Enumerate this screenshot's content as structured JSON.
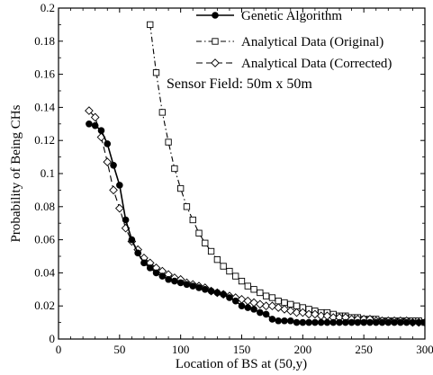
{
  "chart_data": {
    "type": "line",
    "xlabel": "Location of BS at (50,y)",
    "ylabel": "Probability of Being CHs",
    "xlim": [
      0,
      300
    ],
    "ylim": [
      0,
      0.2
    ],
    "x_ticks": [
      0,
      50,
      100,
      150,
      200,
      250,
      300
    ],
    "y_ticks": [
      0,
      0.02,
      0.04,
      0.06,
      0.08,
      0.1,
      0.12,
      0.14,
      0.16,
      0.18,
      0.2
    ],
    "x_tick_labels": [
      "0",
      "50",
      "100",
      "150",
      "200",
      "250",
      "300"
    ],
    "y_tick_labels": [
      "0",
      "0.02",
      "0.04",
      "0.06",
      "0.08",
      "0.1",
      "0.12",
      "0.14",
      "0.16",
      "0.18",
      "0.2"
    ],
    "grid": false,
    "legend_position": "top-right",
    "annotation": "Sensor Field: 50m x 50m",
    "series": [
      {
        "name": "Genetic Algorithm",
        "line_style": "solid",
        "marker": "filled-circle",
        "color": "#000000",
        "x": [
          25,
          30,
          35,
          40,
          45,
          50,
          55,
          60,
          65,
          70,
          75,
          80,
          85,
          90,
          95,
          100,
          105,
          110,
          115,
          120,
          125,
          130,
          135,
          140,
          145,
          150,
          155,
          160,
          165,
          170,
          175,
          180,
          185,
          190,
          195,
          200,
          205,
          210,
          215,
          220,
          225,
          230,
          235,
          240,
          245,
          250,
          255,
          260,
          265,
          270,
          275,
          280,
          285,
          290,
          295,
          300
        ],
        "values": [
          0.13,
          0.129,
          0.126,
          0.118,
          0.105,
          0.093,
          0.072,
          0.06,
          0.052,
          0.046,
          0.043,
          0.04,
          0.038,
          0.036,
          0.035,
          0.034,
          0.033,
          0.032,
          0.031,
          0.03,
          0.029,
          0.028,
          0.027,
          0.025,
          0.023,
          0.02,
          0.019,
          0.018,
          0.016,
          0.015,
          0.012,
          0.011,
          0.011,
          0.011,
          0.01,
          0.01,
          0.01,
          0.01,
          0.01,
          0.01,
          0.01,
          0.01,
          0.01,
          0.01,
          0.01,
          0.01,
          0.01,
          0.01,
          0.01,
          0.01,
          0.01,
          0.01,
          0.01,
          0.01,
          0.01,
          0.01
        ]
      },
      {
        "name": "Analytical Data (Original)",
        "line_style": "dash-dot",
        "marker": "open-square",
        "color": "#000000",
        "x": [
          75,
          80,
          85,
          90,
          95,
          100,
          105,
          110,
          115,
          120,
          125,
          130,
          135,
          140,
          145,
          150,
          155,
          160,
          165,
          170,
          175,
          180,
          185,
          190,
          195,
          200,
          205,
          210,
          215,
          220,
          225,
          230,
          235,
          240,
          245,
          250,
          255,
          260,
          265,
          270,
          275,
          280,
          285,
          290,
          295,
          300
        ],
        "values": [
          0.19,
          0.161,
          0.137,
          0.119,
          0.103,
          0.091,
          0.08,
          0.072,
          0.064,
          0.058,
          0.053,
          0.048,
          0.044,
          0.041,
          0.038,
          0.035,
          0.032,
          0.03,
          0.028,
          0.026,
          0.025,
          0.023,
          0.022,
          0.021,
          0.02,
          0.019,
          0.018,
          0.017,
          0.016,
          0.016,
          0.015,
          0.014,
          0.014,
          0.013,
          0.013,
          0.012,
          0.012,
          0.012,
          0.011,
          0.011,
          0.011,
          0.011,
          0.011,
          0.011,
          0.011,
          0.01
        ]
      },
      {
        "name": "Analytical Data (Corrected)",
        "line_style": "dashed",
        "marker": "open-diamond",
        "color": "#000000",
        "x": [
          25,
          30,
          35,
          40,
          45,
          50,
          55,
          60,
          65,
          70,
          75,
          80,
          85,
          90,
          95,
          100,
          105,
          110,
          115,
          120,
          125,
          130,
          135,
          140,
          145,
          150,
          155,
          160,
          165,
          170,
          175,
          180,
          185,
          190,
          195,
          200,
          205,
          210,
          215,
          220,
          225,
          230,
          235,
          240,
          245,
          250,
          255,
          260,
          265,
          270,
          275,
          280,
          285,
          290,
          295,
          300
        ],
        "values": [
          0.138,
          0.134,
          0.122,
          0.107,
          0.09,
          0.079,
          0.067,
          0.059,
          0.054,
          0.049,
          0.046,
          0.043,
          0.041,
          0.039,
          0.037,
          0.036,
          0.034,
          0.033,
          0.032,
          0.031,
          0.029,
          0.028,
          0.027,
          0.026,
          0.025,
          0.024,
          0.023,
          0.022,
          0.021,
          0.02,
          0.02,
          0.019,
          0.018,
          0.017,
          0.016,
          0.016,
          0.015,
          0.015,
          0.014,
          0.014,
          0.013,
          0.013,
          0.013,
          0.012,
          0.012,
          0.012,
          0.012,
          0.011,
          0.011,
          0.011,
          0.011,
          0.011,
          0.011,
          0.01,
          0.01,
          0.01
        ]
      }
    ]
  }
}
